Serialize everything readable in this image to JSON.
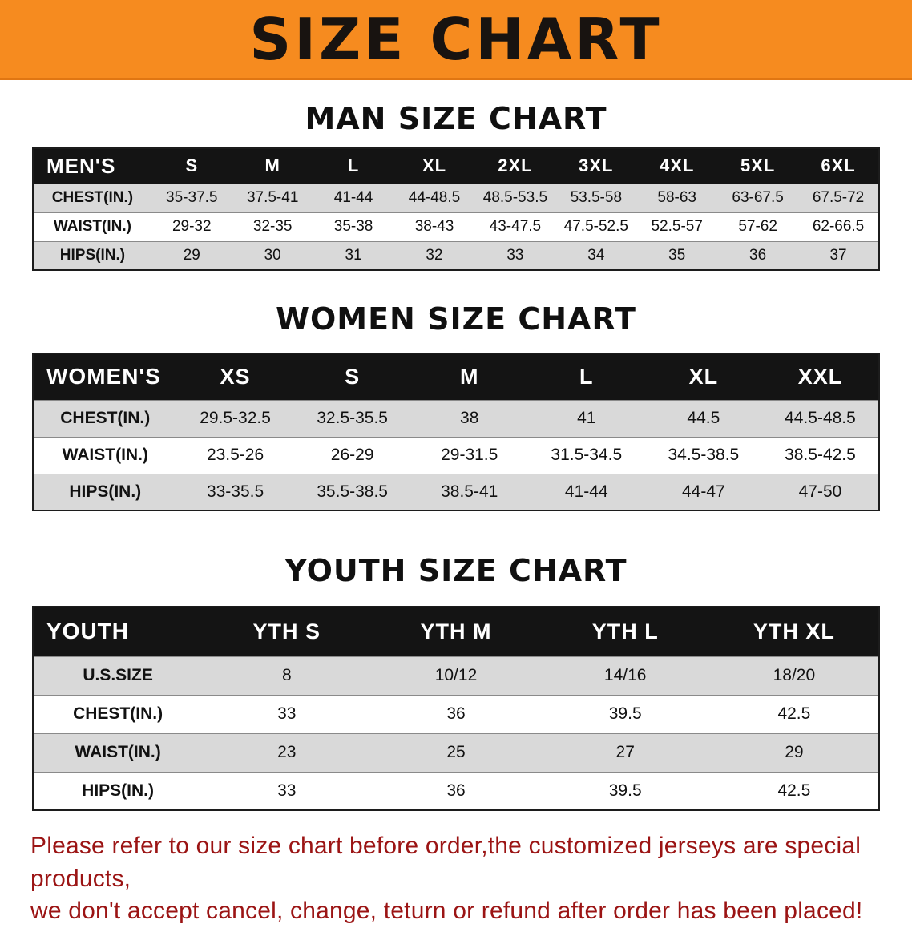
{
  "banner": {
    "title": "SIZE CHART"
  },
  "sections": [
    {
      "heading": "MAN SIZE CHART",
      "table": {
        "header": [
          "MEN'S",
          "S",
          "M",
          "L",
          "XL",
          "2XL",
          "3XL",
          "4XL",
          "5XL",
          "6XL"
        ],
        "rows": [
          [
            "CHEST(IN.)",
            "35-37.5",
            "37.5-41",
            "41-44",
            "44-48.5",
            "48.5-53.5",
            "53.5-58",
            "58-63",
            "63-67.5",
            "67.5-72"
          ],
          [
            "WAIST(IN.)",
            "29-32",
            "32-35",
            "35-38",
            "38-43",
            "43-47.5",
            "47.5-52.5",
            "52.5-57",
            "57-62",
            "62-66.5"
          ],
          [
            "HIPS(IN.)",
            "29",
            "30",
            "31",
            "32",
            "33",
            "34",
            "35",
            "36",
            "37"
          ]
        ]
      }
    },
    {
      "heading": "WOMEN SIZE CHART",
      "table": {
        "header": [
          "WOMEN'S",
          "XS",
          "S",
          "M",
          "L",
          "XL",
          "XXL"
        ],
        "rows": [
          [
            "CHEST(IN.)",
            "29.5-32.5",
            "32.5-35.5",
            "38",
            "41",
            "44.5",
            "44.5-48.5"
          ],
          [
            "WAIST(IN.)",
            "23.5-26",
            "26-29",
            "29-31.5",
            "31.5-34.5",
            "34.5-38.5",
            "38.5-42.5"
          ],
          [
            "HIPS(IN.)",
            "33-35.5",
            "35.5-38.5",
            "38.5-41",
            "41-44",
            "44-47",
            "47-50"
          ]
        ]
      }
    },
    {
      "heading": "YOUTH SIZE CHART",
      "table": {
        "header": [
          "YOUTH",
          "YTH S",
          "YTH M",
          "YTH L",
          "YTH XL"
        ],
        "rows": [
          [
            "U.S.SIZE",
            "8",
            "10/12",
            "14/16",
            "18/20"
          ],
          [
            "CHEST(IN.)",
            "33",
            "36",
            "39.5",
            "42.5"
          ],
          [
            "WAIST(IN.)",
            "23",
            "25",
            "27",
            "29"
          ],
          [
            "HIPS(IN.)",
            "33",
            "36",
            "39.5",
            "42.5"
          ]
        ]
      }
    }
  ],
  "footer": {
    "lines": [
      "Please refer to our size chart before order,the customized jerseys are special products,",
      "we don't accept cancel, change, teturn or refund after order has been placed!"
    ]
  },
  "colors": {
    "banner_bg": "#f68b1f",
    "banner_text": "#181310",
    "header_row_bg": "#141414",
    "header_row_text": "#ffffff",
    "stripe": "#d9d9d9",
    "notice_text": "#9b1414"
  }
}
